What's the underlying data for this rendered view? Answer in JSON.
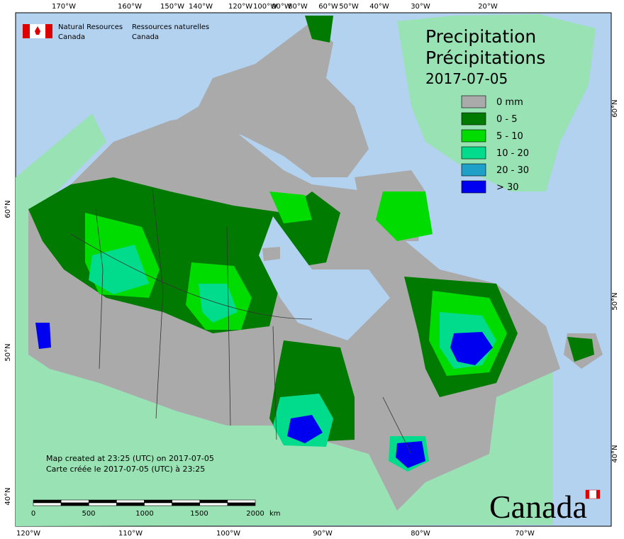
{
  "header": {
    "org_en": [
      "Natural Resources",
      "Canada"
    ],
    "org_fr": [
      "Ressources naturelles",
      "Canada"
    ]
  },
  "title": {
    "en": "Precipitation",
    "fr": "Précipitations",
    "date": "2017-07-05"
  },
  "legend": [
    {
      "label": "0 mm",
      "color": "#aaaaaa"
    },
    {
      "label": "0 - 5",
      "color": "#007a00"
    },
    {
      "label": "5 - 10",
      "color": "#00dc00"
    },
    {
      "label": "10 - 20",
      "color": "#00dc8c"
    },
    {
      "label": "20 - 30",
      "color": "#1ea0c8"
    },
    {
      "label": "> 30",
      "color": "#0000f0"
    }
  ],
  "notes": [
    "Map created at 23:25 (UTC) on 2017-07-05",
    "Carte créée le 2017-07-05 (UTC) à 23:25"
  ],
  "scale_bar": {
    "labels": [
      "0",
      "500",
      "1000",
      "1500",
      "2000"
    ],
    "unit": "km"
  },
  "top_labels": [
    "170°W",
    "160°W",
    "150°W",
    "140°W",
    "120°W",
    "100°W",
    "90°W",
    "80°W",
    "60°W",
    "50°W",
    "40°W",
    "30°W",
    "20°W"
  ],
  "bottom_labels": [
    "120°W",
    "110°W",
    "100°W",
    "90°W",
    "80°W",
    "70°W"
  ],
  "left_labels": [
    "60°N",
    "50°N",
    "40°N"
  ],
  "right_labels": [
    "60°N",
    "50°N",
    "40°N"
  ],
  "wordmark": "Canada"
}
